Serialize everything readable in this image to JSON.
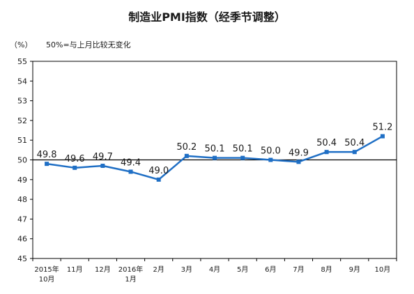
{
  "chart_data": {
    "type": "line",
    "title": "制造业PMI指数（经季节调整）",
    "ylabel": "（%）",
    "note": "50%=与上月比较无变化",
    "ylim": [
      45,
      55
    ],
    "yticks": [
      45,
      46,
      47,
      48,
      49,
      50,
      51,
      52,
      53,
      54,
      55
    ],
    "reference_line": 50,
    "grid": false,
    "legend": "none",
    "categories": [
      [
        "2015年",
        "10月"
      ],
      [
        "11月"
      ],
      [
        "12月"
      ],
      [
        "2016年",
        "1月"
      ],
      [
        "2月"
      ],
      [
        "3月"
      ],
      [
        "4月"
      ],
      [
        "5月"
      ],
      [
        "6月"
      ],
      [
        "7月"
      ],
      [
        "8月"
      ],
      [
        "9月"
      ],
      [
        "10月"
      ]
    ],
    "series": [
      {
        "values": [
          49.8,
          49.6,
          49.7,
          49.4,
          49.0,
          50.2,
          50.1,
          50.1,
          50.0,
          49.9,
          50.4,
          50.4,
          51.2
        ],
        "labels": [
          "49.8",
          "49.6",
          "49.7",
          "49.4",
          "49.0",
          "50.2",
          "50.1",
          "50.1",
          "50.0",
          "49.9",
          "50.4",
          "50.4",
          "51.2"
        ],
        "color": "#1f6fc5"
      }
    ]
  }
}
